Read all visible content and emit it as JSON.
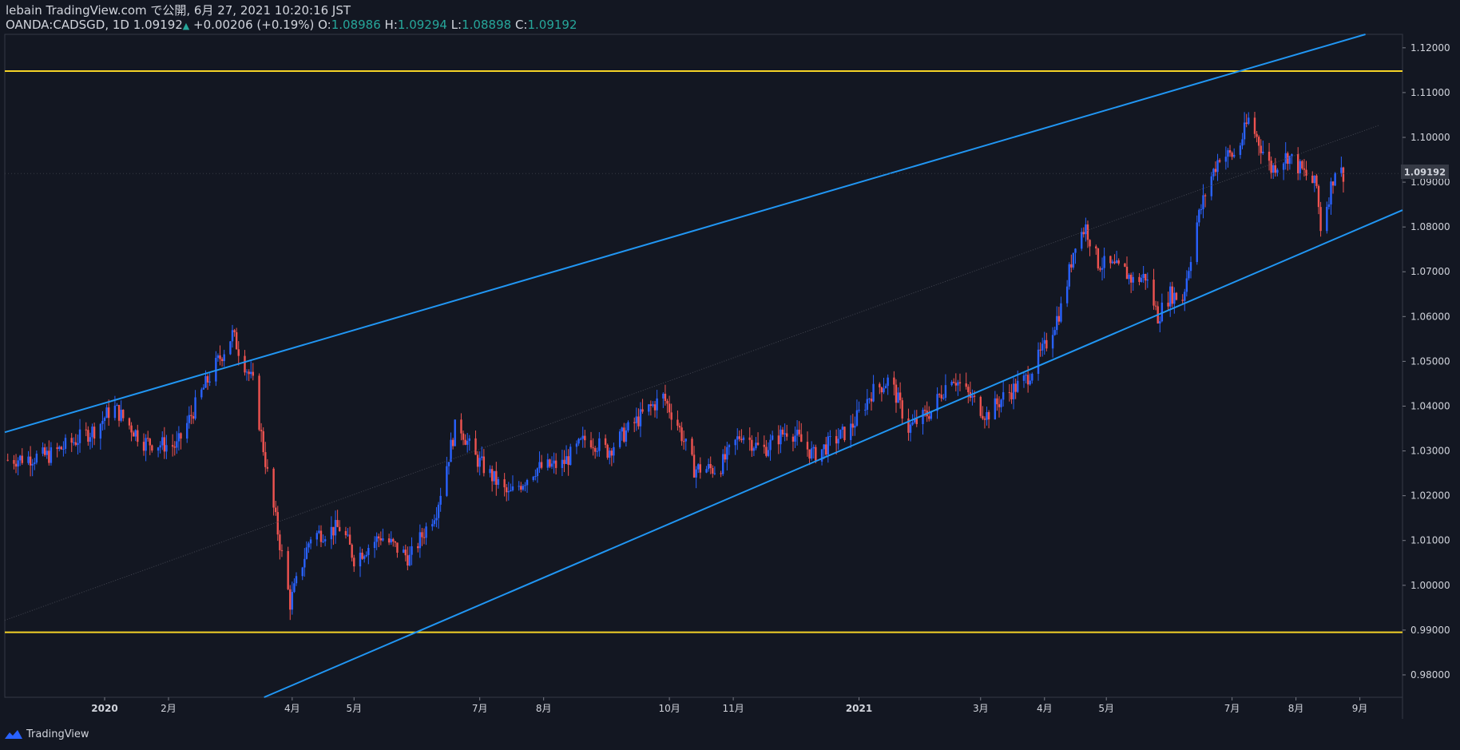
{
  "header": {
    "published": "lebain TradingView.com で公開, 6月 27, 2021 10:20:16 JST",
    "symbol": "OANDA:CADSGD, 1D",
    "last": "1.09192",
    "change": "+0.00206 (+0.19%)",
    "o_label": "O:",
    "o_value": "1.08986",
    "h_label": "H:",
    "h_value": "1.09294",
    "l_label": "L:",
    "l_value": "1.08898",
    "c_label": "C:",
    "c_value": "1.09192"
  },
  "footer": {
    "brand": "TradingView"
  },
  "colors": {
    "background": "#131722",
    "up": "#2962ff",
    "down": "#ef5350",
    "channel": "#2196f3",
    "level": "#f5d327",
    "text": "#d1d4dc"
  },
  "chart_data": {
    "type": "candlestick",
    "title": "",
    "ylim": [
      0.975,
      1.123
    ],
    "y_ticks": [
      "0.98000",
      "0.99000",
      "1.00000",
      "1.01000",
      "1.02000",
      "1.03000",
      "1.04000",
      "1.05000",
      "1.06000",
      "1.07000",
      "1.08000",
      "1.09000",
      "1.10000",
      "1.11000",
      "1.12000"
    ],
    "x_ticks": [
      {
        "label": "2020",
        "date": "2020-01-01"
      },
      {
        "label": "2月",
        "date": "2020-02-01"
      },
      {
        "label": "4月",
        "date": "2020-04-01"
      },
      {
        "label": "5月",
        "date": "2020-05-01"
      },
      {
        "label": "7月",
        "date": "2020-07-01"
      },
      {
        "label": "8月",
        "date": "2020-08-01"
      },
      {
        "label": "10月",
        "date": "2020-10-01"
      },
      {
        "label": "11月",
        "date": "2020-11-01"
      },
      {
        "label": "2021",
        "date": "2021-01-01"
      },
      {
        "label": "3月",
        "date": "2021-03-01"
      },
      {
        "label": "4月",
        "date": "2021-04-01"
      },
      {
        "label": "5月",
        "date": "2021-05-01"
      },
      {
        "label": "7月",
        "date": "2021-07-01"
      },
      {
        "label": "8月",
        "date": "2021-08-01"
      },
      {
        "label": "9月",
        "date": "2021-09-01"
      }
    ],
    "last_price": "1.09192",
    "horizontal_levels": [
      1.1148,
      0.9895
    ],
    "channel": {
      "upper": [
        {
          "date": "2019-11-16",
          "value": 1.0345
        },
        {
          "date": "2021-05-13",
          "value": 1.1077
        }
      ],
      "lower": [
        {
          "date": "2020-05-31",
          "value": 0.9895
        },
        {
          "date": "2021-04-21",
          "value": 1.0535
        }
      ]
    },
    "price_path": [
      {
        "date": "2019-11-15",
        "value": 1.028
      },
      {
        "date": "2019-12-05",
        "value": 1.029
      },
      {
        "date": "2019-12-28",
        "value": 1.035
      },
      {
        "date": "2020-01-05",
        "value": 1.04
      },
      {
        "date": "2020-01-20",
        "value": 1.032
      },
      {
        "date": "2020-02-05",
        "value": 1.031
      },
      {
        "date": "2020-02-18",
        "value": 1.044
      },
      {
        "date": "2020-03-03",
        "value": 1.056
      },
      {
        "date": "2020-03-13",
        "value": 1.045
      },
      {
        "date": "2020-03-21",
        "value": 1.022
      },
      {
        "date": "2020-03-25",
        "value": 1.012
      },
      {
        "date": "2020-03-31",
        "value": 0.996
      },
      {
        "date": "2020-04-10",
        "value": 1.011
      },
      {
        "date": "2020-04-25",
        "value": 1.013
      },
      {
        "date": "2020-05-01",
        "value": 1.006
      },
      {
        "date": "2020-05-14",
        "value": 1.011
      },
      {
        "date": "2020-05-28",
        "value": 1.006
      },
      {
        "date": "2020-06-10",
        "value": 1.017
      },
      {
        "date": "2020-06-20",
        "value": 1.037
      },
      {
        "date": "2020-06-28",
        "value": 1.029
      },
      {
        "date": "2020-07-15",
        "value": 1.02
      },
      {
        "date": "2020-07-28",
        "value": 1.026
      },
      {
        "date": "2020-08-10",
        "value": 1.027
      },
      {
        "date": "2020-08-22",
        "value": 1.033
      },
      {
        "date": "2020-09-01",
        "value": 1.03
      },
      {
        "date": "2020-09-20",
        "value": 1.039
      },
      {
        "date": "2020-09-28",
        "value": 1.042
      },
      {
        "date": "2020-10-05",
        "value": 1.036
      },
      {
        "date": "2020-10-13",
        "value": 1.026
      },
      {
        "date": "2020-10-25",
        "value": 1.026
      },
      {
        "date": "2020-11-05",
        "value": 1.034
      },
      {
        "date": "2020-11-15",
        "value": 1.03
      },
      {
        "date": "2020-11-28",
        "value": 1.035
      },
      {
        "date": "2020-12-10",
        "value": 1.029
      },
      {
        "date": "2020-12-28",
        "value": 1.035
      },
      {
        "date": "2021-01-07",
        "value": 1.043
      },
      {
        "date": "2021-01-16",
        "value": 1.046
      },
      {
        "date": "2021-01-25",
        "value": 1.035
      },
      {
        "date": "2021-02-05",
        "value": 1.039
      },
      {
        "date": "2021-02-15",
        "value": 1.047
      },
      {
        "date": "2021-02-22",
        "value": 1.043
      },
      {
        "date": "2021-03-04",
        "value": 1.038
      },
      {
        "date": "2021-03-12",
        "value": 1.042
      },
      {
        "date": "2021-03-23",
        "value": 1.046
      },
      {
        "date": "2021-04-01",
        "value": 1.053
      },
      {
        "date": "2021-04-10",
        "value": 1.063
      },
      {
        "date": "2021-04-16",
        "value": 1.077
      },
      {
        "date": "2021-04-21",
        "value": 1.08
      },
      {
        "date": "2021-04-27",
        "value": 1.072
      },
      {
        "date": "2021-05-04",
        "value": 1.071
      },
      {
        "date": "2021-05-10",
        "value": 1.07
      },
      {
        "date": "2021-05-14",
        "value": 1.068
      },
      {
        "date": "2021-05-20",
        "value": 1.069
      },
      {
        "date": "2021-05-26",
        "value": 1.06
      },
      {
        "date": "2021-06-01",
        "value": 1.065
      },
      {
        "date": "2021-06-07",
        "value": 1.064
      },
      {
        "date": "2021-06-14",
        "value": 1.081
      },
      {
        "date": "2021-06-19",
        "value": 1.089
      },
      {
        "date": "2021-06-25",
        "value": 1.096
      },
      {
        "date": "2021-07-03",
        "value": 1.096
      },
      {
        "date": "2021-07-09",
        "value": 1.104
      },
      {
        "date": "2021-07-14",
        "value": 1.099
      },
      {
        "date": "2021-07-20",
        "value": 1.093
      },
      {
        "date": "2021-07-28",
        "value": 1.096
      },
      {
        "date": "2021-08-05",
        "value": 1.092
      },
      {
        "date": "2021-08-11",
        "value": 1.089
      },
      {
        "date": "2021-08-13",
        "value": 1.08
      },
      {
        "date": "2021-08-17",
        "value": 1.087
      },
      {
        "date": "2021-08-20",
        "value": 1.093
      },
      {
        "date": "2021-08-24",
        "value": 1.0919
      }
    ]
  }
}
